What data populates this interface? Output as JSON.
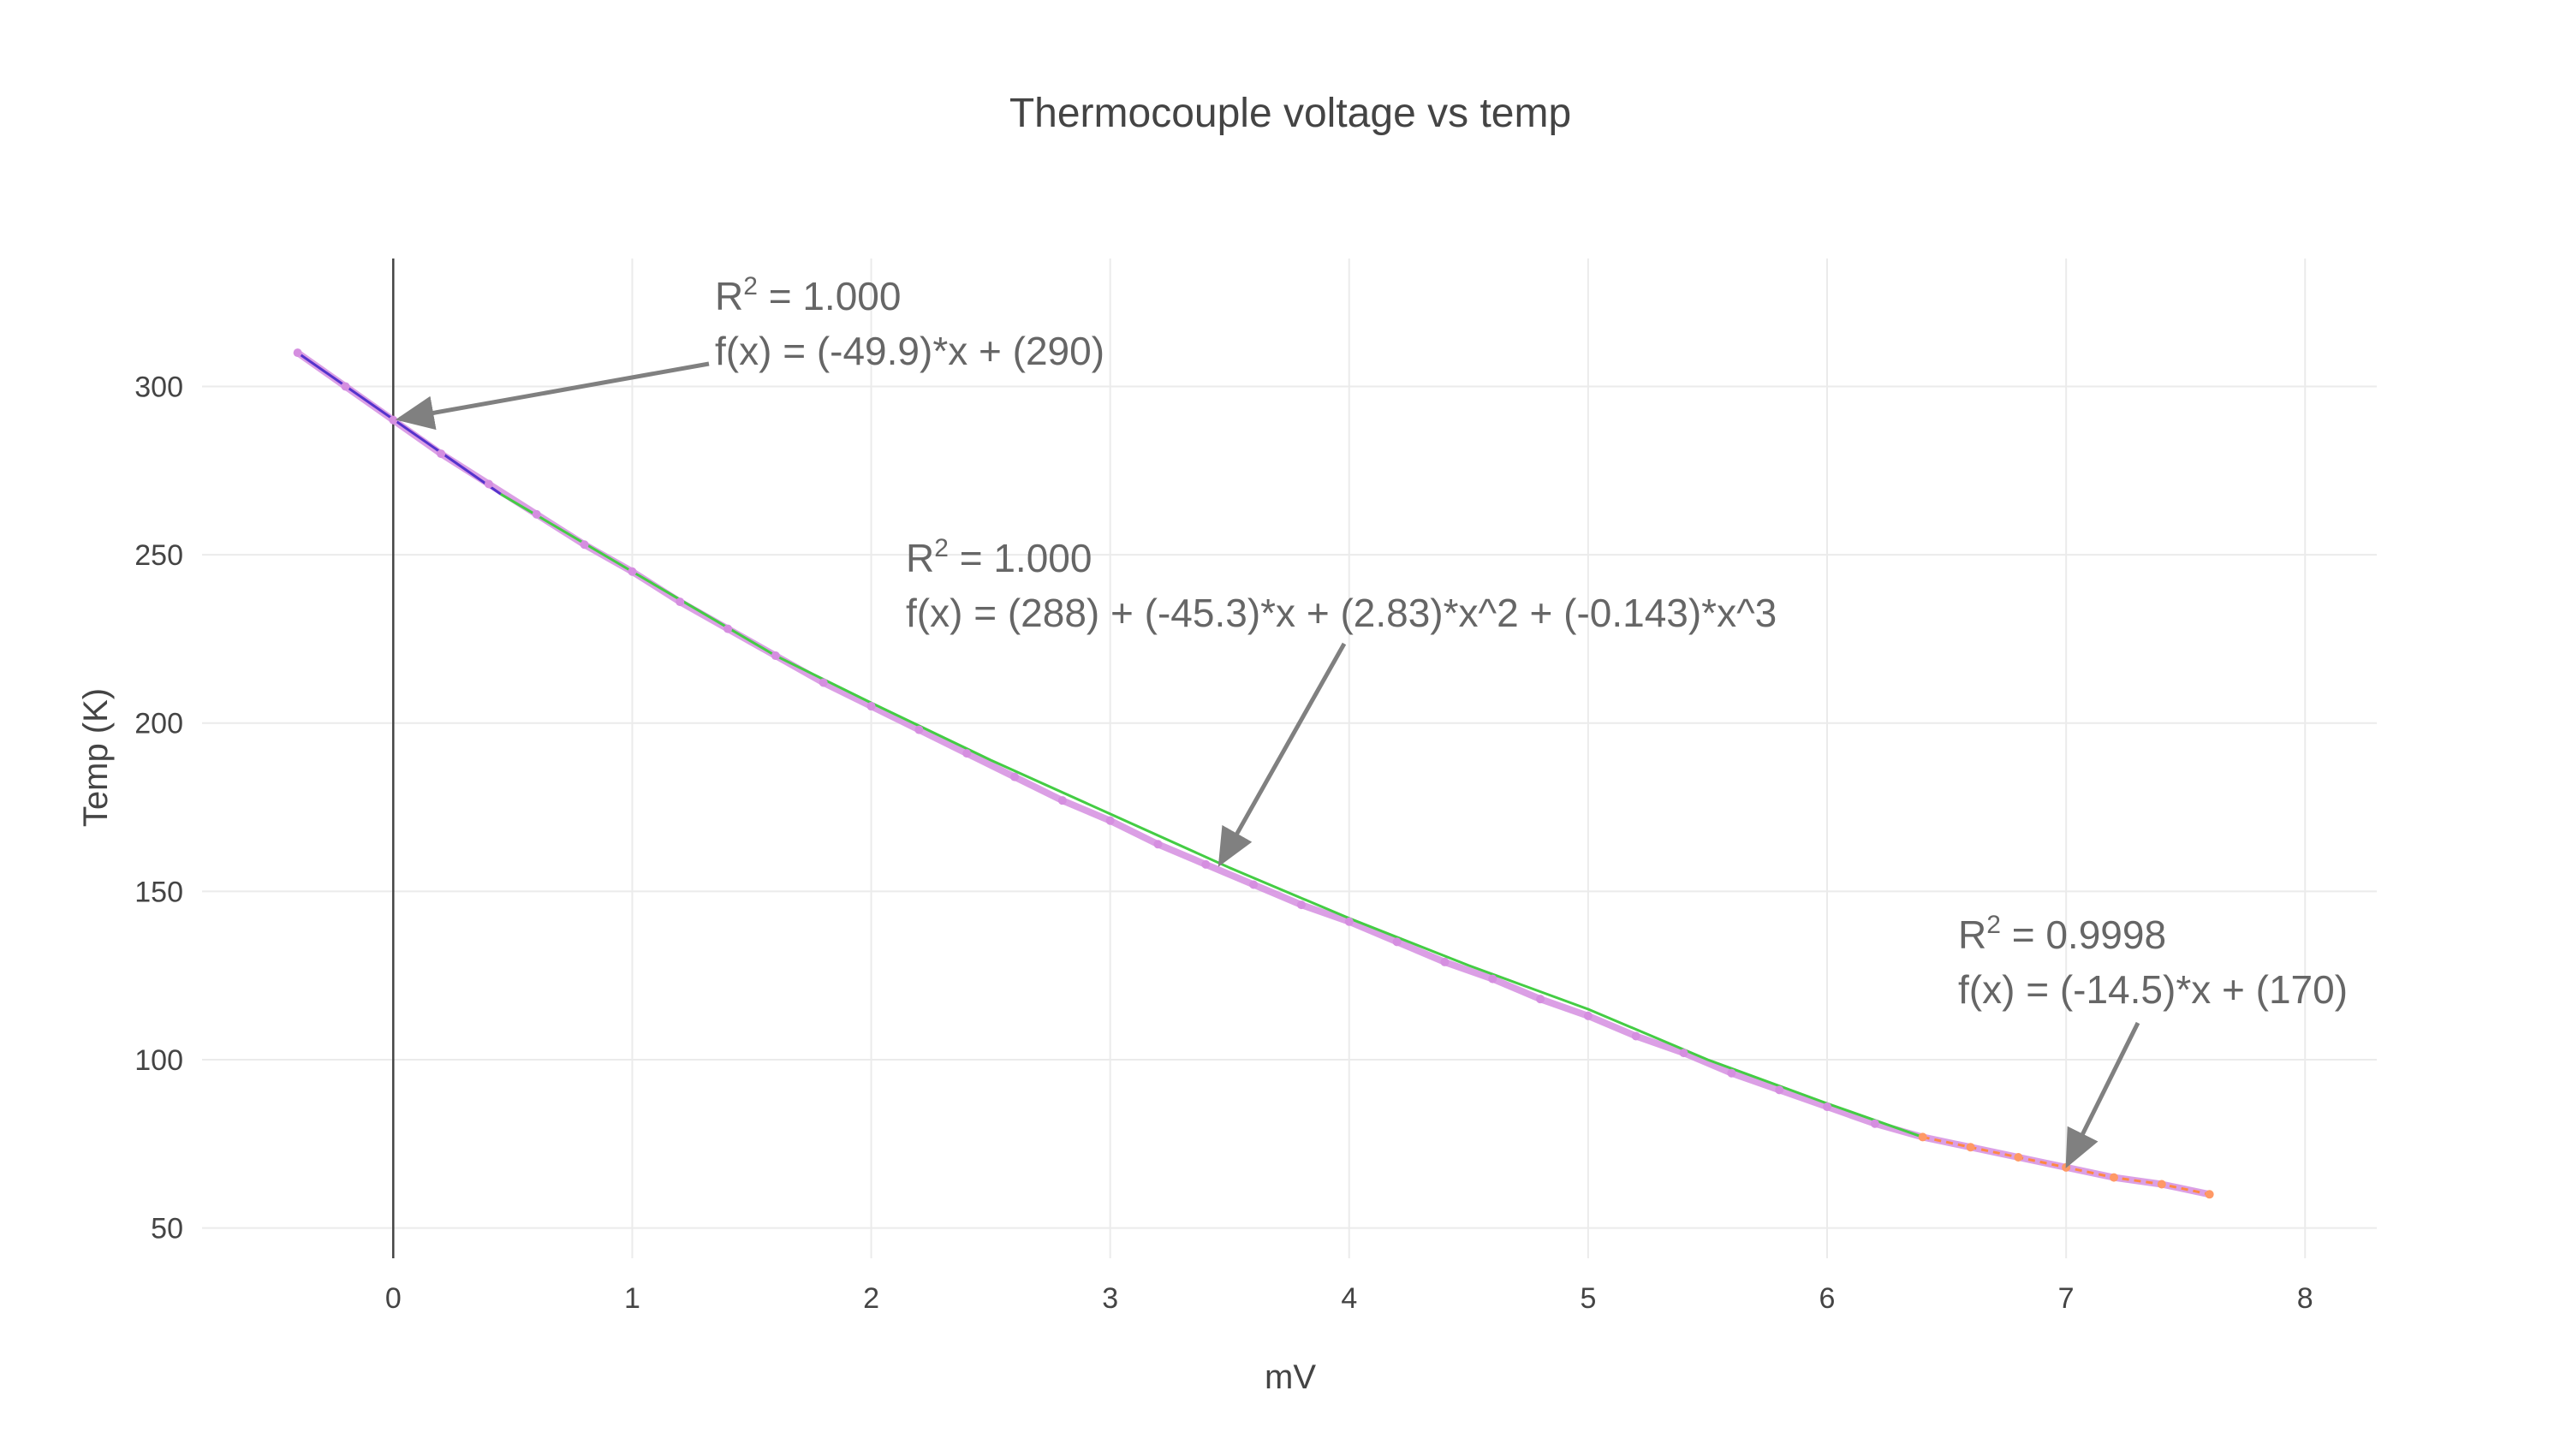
{
  "chart_data": {
    "type": "line",
    "title": "Thermocouple voltage vs temp",
    "xlabel": "mV",
    "ylabel": "Temp (K)",
    "xlim": [
      -0.8,
      8.3
    ],
    "ylim": [
      41,
      338
    ],
    "xticks": [
      0,
      1,
      2,
      3,
      4,
      5,
      6,
      7,
      8
    ],
    "yticks": [
      50,
      100,
      150,
      200,
      250,
      300
    ],
    "grid": true,
    "legend": "none",
    "series": [
      {
        "role": "data",
        "color": "#d58ee0",
        "x": [
          -0.4,
          -0.2,
          0.0,
          0.2,
          0.4,
          0.6,
          0.8,
          1.0,
          1.2,
          1.4,
          1.6,
          1.8,
          2.0,
          2.2,
          2.4,
          2.6,
          2.8,
          3.0,
          3.2,
          3.4,
          3.6,
          3.8,
          4.0,
          4.2,
          4.4,
          4.6,
          4.8,
          5.0,
          5.2,
          5.4,
          5.6,
          5.8,
          6.0,
          6.2,
          6.4,
          6.6,
          6.8,
          7.0,
          7.2,
          7.4,
          7.6
        ],
        "y": [
          310,
          300,
          290,
          280,
          271,
          262,
          253,
          245,
          236,
          228,
          220,
          212,
          205,
          198,
          191,
          184,
          177,
          171,
          164,
          158,
          152,
          146,
          141,
          135,
          129,
          124,
          118,
          113,
          107,
          102,
          96,
          91,
          86,
          81,
          77,
          74,
          71,
          68,
          65,
          63,
          60
        ]
      },
      {
        "role": "fit",
        "color": "#5533cc",
        "x": [
          -0.4,
          0.45
        ],
        "y": [
          310,
          268
        ]
      },
      {
        "role": "fit",
        "color": "#44cc44",
        "x": [
          0.45,
          1.0,
          1.6,
          2.0,
          2.5,
          3.0,
          3.5,
          4.0,
          4.5,
          5.0,
          5.5,
          6.0,
          6.4
        ],
        "y": [
          268,
          245,
          220,
          206,
          189,
          173,
          157,
          142,
          128,
          115,
          100,
          87,
          77
        ]
      },
      {
        "role": "fit",
        "color": "#ff8844",
        "x": [
          6.4,
          6.6,
          6.8,
          7.0,
          7.2,
          7.4,
          7.6
        ],
        "y": [
          77,
          74,
          71,
          68,
          65,
          63,
          60
        ]
      }
    ],
    "annotations": [
      {
        "r2_prefix": "R",
        "r2_exp": "2",
        "r2_value": " = 1.000",
        "formula": "f(x) = (-49.9)*x + (290)",
        "point_x": 0.0,
        "point_y": 290
      },
      {
        "r2_prefix": "R",
        "r2_exp": "2",
        "r2_value": " = 1.000",
        "formula": "f(x) = (288) + (-45.3)*x + (2.83)*x^2 + (-0.143)*x^3",
        "point_x": 3.45,
        "point_y": 157
      },
      {
        "r2_prefix": "R",
        "r2_exp": "2",
        "r2_value": " = 0.9998",
        "formula": "f(x) = (-14.5)*x + (170)",
        "point_x": 7.0,
        "point_y": 68
      }
    ]
  },
  "colors": {
    "arrow": "#808080",
    "annotation_text": "#666666",
    "grid": "#ebebeb",
    "zeroline": "#444444"
  }
}
